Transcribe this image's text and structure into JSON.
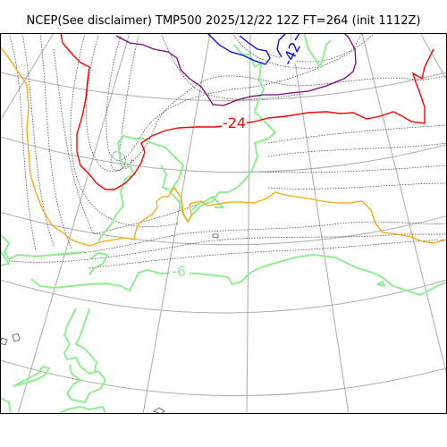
{
  "title": "NCEP(See disclaimer) TMP500 2025/12/22 12Z FT=264 (init 1112Z)",
  "colors": {
    "coast": "#90ee90",
    "grid": "#aaaaaa",
    "dotted": "#333333",
    "red": "#ff0000",
    "orange": "#ffa500",
    "purple": "#800080",
    "blue": "#0000ff"
  },
  "labels": {
    "red_label": "-24",
    "blue_label": "-42",
    "green_label": "-6"
  }
}
